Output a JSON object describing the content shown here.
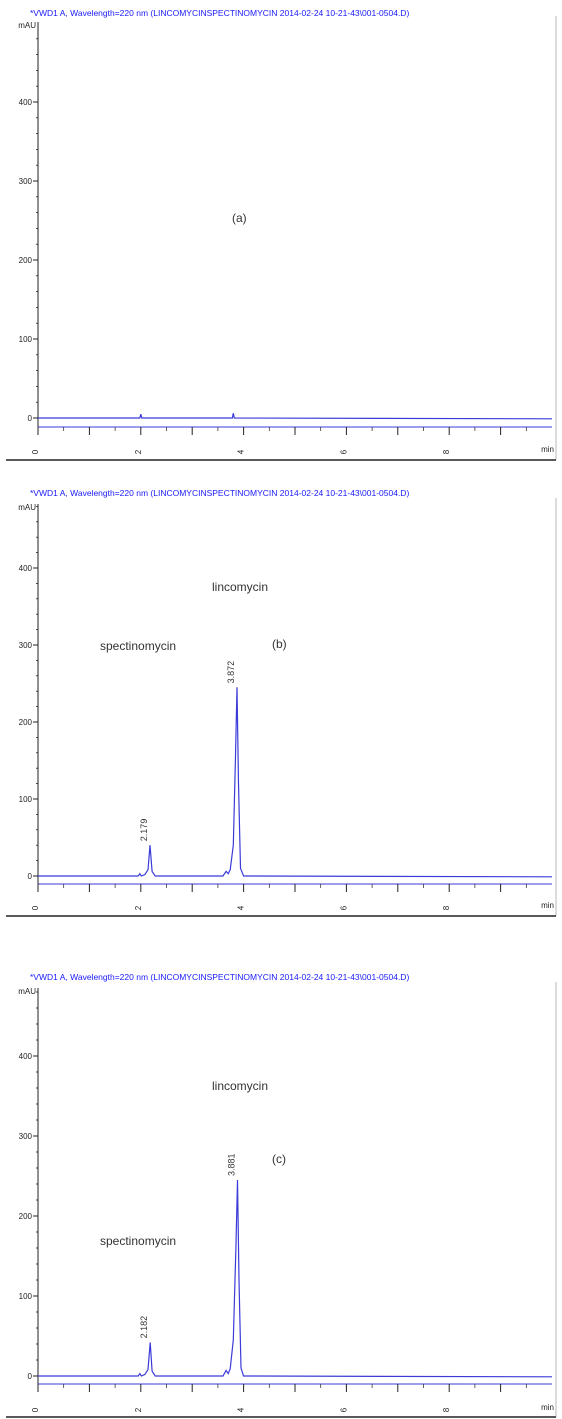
{
  "colors": {
    "header_text": "#1a1aff",
    "trace": "#3b3bd9",
    "axis": "#222222",
    "frame": "#b8b8b8",
    "label_text": "#333333"
  },
  "chart_data": [
    {
      "type": "line",
      "header": "*VWD1 A, Wavelength=220 nm (LINCOMYCINSPECTINOMYCIN 2014-02-24 10-21-43\\001-0504.D)",
      "y_unit": "mAU",
      "x_unit": "min",
      "xlim": [
        0,
        10
      ],
      "ylim": [
        -5,
        500
      ],
      "y_ticks": [
        0,
        100,
        200,
        300,
        400
      ],
      "x_ticks": [
        0,
        2,
        4,
        6,
        8
      ],
      "panel_label": "(a)",
      "peaks": [],
      "series": [
        {
          "x": [
            0,
            1.98,
            2.0,
            2.02,
            3.78,
            3.8,
            3.82,
            10
          ],
          "y": [
            0,
            0,
            5,
            0,
            0,
            6,
            0,
            -1
          ]
        }
      ]
    },
    {
      "type": "line",
      "header": "*VWD1 A, Wavelength=220 nm (LINCOMYCINSPECTINOMYCIN 2014-02-24 10-21-43\\001-0504.D)",
      "y_unit": "mAU",
      "x_unit": "min",
      "xlim": [
        0,
        10
      ],
      "ylim": [
        -5,
        500
      ],
      "y_ticks": [
        0,
        100,
        200,
        300,
        400
      ],
      "x_ticks": [
        0,
        2,
        4,
        6,
        8
      ],
      "panel_label": "(b)",
      "peaks": [
        {
          "name": "spectinomycin",
          "rt": "2.179",
          "x": 2.179,
          "height": 40
        },
        {
          "name": "lincomycin",
          "rt": "3.872",
          "x": 3.872,
          "height": 245
        }
      ],
      "series": [
        {
          "x": [
            0,
            1.95,
            1.98,
            2.01,
            2.08,
            2.14,
            2.179,
            2.22,
            2.28,
            3.6,
            3.66,
            3.7,
            3.74,
            3.8,
            3.84,
            3.872,
            3.9,
            3.94,
            4.0,
            10
          ],
          "y": [
            0,
            0,
            3,
            0,
            2,
            8,
            40,
            6,
            0,
            0,
            6,
            3,
            8,
            40,
            150,
            245,
            120,
            10,
            0,
            -1
          ]
        }
      ]
    },
    {
      "type": "line",
      "header": "*VWD1 A, Wavelength=220 nm (LINCOMYCINSPECTINOMYCIN 2014-02-24 10-21-43\\001-0504.D)",
      "y_unit": "mAU",
      "x_unit": "min",
      "xlim": [
        0,
        10
      ],
      "ylim": [
        -5,
        500
      ],
      "y_ticks": [
        0,
        100,
        200,
        300,
        400
      ],
      "x_ticks": [
        0,
        2,
        4,
        6,
        8
      ],
      "panel_label": "(c)",
      "peaks": [
        {
          "name": "spectinomycin",
          "rt": "2.182",
          "x": 2.182,
          "height": 42
        },
        {
          "name": "lincomycin",
          "rt": "3.881",
          "x": 3.881,
          "height": 245
        }
      ],
      "series": [
        {
          "x": [
            0,
            1.95,
            1.98,
            2.01,
            2.08,
            2.14,
            2.182,
            2.22,
            2.28,
            3.6,
            3.66,
            3.7,
            3.74,
            3.8,
            3.85,
            3.881,
            3.91,
            3.95,
            4.0,
            10
          ],
          "y": [
            0,
            0,
            3,
            0,
            2,
            8,
            42,
            6,
            0,
            0,
            7,
            3,
            9,
            45,
            160,
            245,
            120,
            10,
            0,
            -1
          ]
        }
      ]
    }
  ]
}
